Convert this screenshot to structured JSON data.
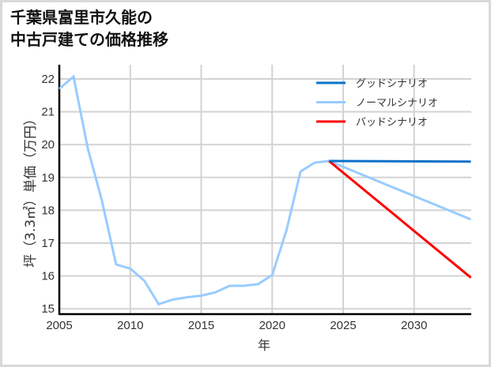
{
  "title": {
    "line1": "千葉県富里市久能の",
    "line2": "中古戸建ての価格推移"
  },
  "axes": {
    "ylabel": "坪（3.3㎡）単価（万円）",
    "xlabel": "年"
  },
  "legend": [
    {
      "label": "グッドシナリオ",
      "color": "#0a72c9"
    },
    {
      "label": "ノーマルシナリオ",
      "color": "#99ccff"
    },
    {
      "label": "バッドシナリオ",
      "color": "#ff0000"
    }
  ],
  "chart_data": {
    "type": "line",
    "title": "千葉県富里市久能の中古戸建ての価格推移",
    "xlabel": "年",
    "ylabel": "坪（3.3㎡）単価（万円）",
    "xlim": [
      2005,
      2034
    ],
    "ylim": [
      14.85,
      22.4
    ],
    "xticks": [
      2005,
      2010,
      2015,
      2020,
      2025,
      2030
    ],
    "yticks": [
      15,
      16,
      17,
      18,
      19,
      20,
      21,
      22
    ],
    "grid": true,
    "legend_position": "upper right",
    "series": [
      {
        "name": "ノーマルシナリオ",
        "color": "#99ccff",
        "x": [
          2005,
          2006,
          2007,
          2008,
          2009,
          2010,
          2011,
          2012,
          2013,
          2014,
          2015,
          2016,
          2017,
          2018,
          2019,
          2020,
          2021,
          2022,
          2023,
          2024,
          2034
        ],
        "values": [
          21.7,
          22.07,
          19.9,
          18.3,
          16.35,
          16.22,
          15.85,
          15.14,
          15.28,
          15.35,
          15.4,
          15.5,
          15.7,
          15.7,
          15.75,
          16.03,
          17.38,
          19.18,
          19.45,
          19.5,
          17.72
        ]
      },
      {
        "name": "グッドシナリオ",
        "color": "#0a72c9",
        "x": [
          2024,
          2034
        ],
        "values": [
          19.5,
          19.48
        ]
      },
      {
        "name": "バッドシナリオ",
        "color": "#ff0000",
        "x": [
          2024,
          2034
        ],
        "values": [
          19.5,
          15.95
        ]
      }
    ]
  }
}
